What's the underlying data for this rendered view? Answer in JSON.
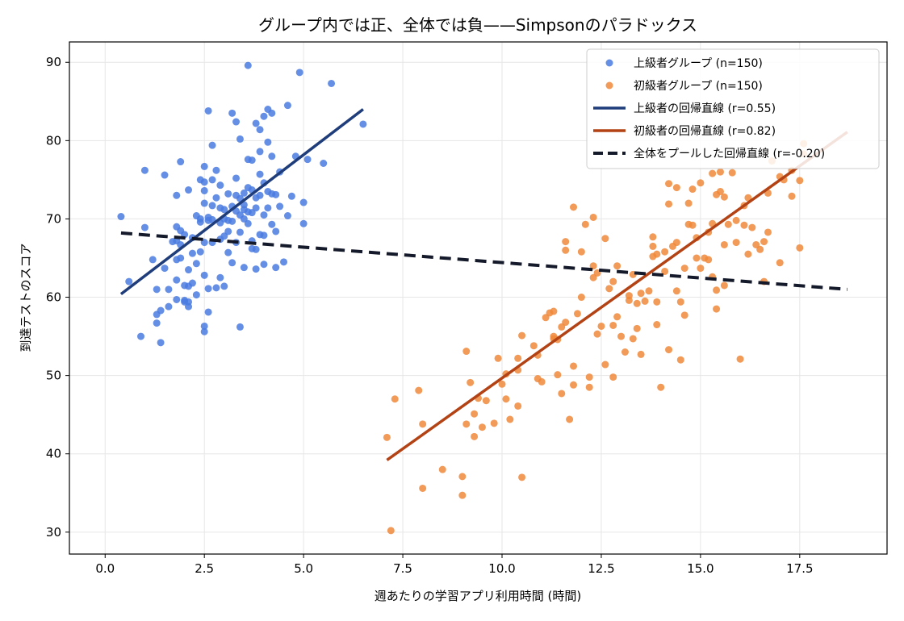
{
  "chart_data": {
    "type": "scatter",
    "title": "グループ内では正、全体では負——Simpsonのパラドックス",
    "xlabel": "週あたりの学習アプリ利用時間 (時間)",
    "ylabel": "到達テストのスコア",
    "xlim": [
      -0.9,
      19.7
    ],
    "ylim": [
      27.2,
      92.6
    ],
    "xticks": [
      0.0,
      2.5,
      5.0,
      7.5,
      10.0,
      12.5,
      15.0,
      17.5
    ],
    "xtick_labels": [
      "0.0",
      "2.5",
      "5.0",
      "7.5",
      "10.0",
      "12.5",
      "15.0",
      "17.5"
    ],
    "yticks": [
      30,
      40,
      50,
      60,
      70,
      80,
      90
    ],
    "ytick_labels": [
      "30",
      "40",
      "50",
      "60",
      "70",
      "80",
      "90"
    ],
    "grid": true,
    "legend_position": "top-right",
    "legend": [
      "上級者グループ (n=150)",
      "初級者グループ (n=150)",
      "上級者の回帰直線 (r=0.55)",
      "初級者の回帰直線 (r=0.82)",
      "全体をプールした回帰直線 (r=-0.20)"
    ],
    "colors": {
      "advanced_points": "#4a7be0",
      "beginner_points": "#f0883a",
      "advanced_line": "#1f3d7a",
      "beginner_line": "#b34214",
      "pooled_line": "#151a2b"
    },
    "series": [
      {
        "name": "上級者グループ (n=150)",
        "kind": "scatter",
        "points": [
          [
            0.4,
            70.3
          ],
          [
            0.6,
            62.0
          ],
          [
            0.9,
            55.0
          ],
          [
            1.0,
            76.2
          ],
          [
            1.0,
            68.9
          ],
          [
            1.2,
            64.8
          ],
          [
            1.3,
            57.8
          ],
          [
            1.3,
            61.0
          ],
          [
            1.3,
            56.7
          ],
          [
            1.4,
            54.2
          ],
          [
            1.4,
            58.3
          ],
          [
            1.5,
            75.6
          ],
          [
            1.5,
            63.7
          ],
          [
            1.6,
            61.0
          ],
          [
            1.6,
            58.8
          ],
          [
            1.7,
            67.1
          ],
          [
            1.8,
            62.2
          ],
          [
            1.8,
            59.7
          ],
          [
            1.8,
            73.0
          ],
          [
            1.8,
            64.8
          ],
          [
            1.8,
            69.0
          ],
          [
            1.8,
            67.2
          ],
          [
            1.9,
            77.3
          ],
          [
            1.9,
            68.5
          ],
          [
            1.9,
            66.7
          ],
          [
            1.9,
            65.0
          ],
          [
            2.0,
            68.0
          ],
          [
            2.0,
            61.5
          ],
          [
            2.0,
            59.6
          ],
          [
            2.0,
            59.4
          ],
          [
            2.1,
            73.7
          ],
          [
            2.1,
            63.5
          ],
          [
            2.1,
            61.4
          ],
          [
            2.1,
            59.4
          ],
          [
            2.1,
            58.8
          ],
          [
            2.2,
            67.6
          ],
          [
            2.2,
            65.6
          ],
          [
            2.3,
            70.4
          ],
          [
            2.3,
            64.3
          ],
          [
            2.3,
            60.3
          ],
          [
            2.4,
            75.0
          ],
          [
            2.4,
            70.0
          ],
          [
            2.4,
            69.6
          ],
          [
            2.4,
            65.8
          ],
          [
            2.5,
            74.7
          ],
          [
            2.5,
            73.6
          ],
          [
            2.5,
            72.0
          ],
          [
            2.5,
            67.0
          ],
          [
            2.5,
            62.8
          ],
          [
            2.5,
            56.3
          ],
          [
            2.5,
            55.6
          ],
          [
            2.5,
            76.7
          ],
          [
            2.6,
            83.8
          ],
          [
            2.6,
            70.2
          ],
          [
            2.6,
            61.1
          ],
          [
            2.6,
            58.1
          ],
          [
            2.7,
            79.4
          ],
          [
            2.7,
            75.0
          ],
          [
            2.7,
            71.7
          ],
          [
            2.7,
            69.9
          ],
          [
            2.7,
            67.0
          ],
          [
            2.8,
            72.7
          ],
          [
            2.8,
            61.2
          ],
          [
            2.8,
            76.2
          ],
          [
            2.9,
            74.3
          ],
          [
            2.9,
            71.4
          ],
          [
            2.9,
            69.5
          ],
          [
            2.9,
            62.5
          ],
          [
            3.0,
            67.8
          ],
          [
            3.0,
            61.4
          ],
          [
            3.0,
            71.2
          ],
          [
            3.1,
            69.8
          ],
          [
            3.1,
            68.4
          ],
          [
            3.1,
            73.2
          ],
          [
            3.1,
            65.7
          ],
          [
            3.2,
            83.5
          ],
          [
            3.2,
            71.6
          ],
          [
            3.2,
            69.7
          ],
          [
            3.2,
            64.4
          ],
          [
            3.3,
            82.4
          ],
          [
            3.3,
            73.0
          ],
          [
            3.3,
            71.0
          ],
          [
            3.3,
            67.0
          ],
          [
            3.4,
            80.2
          ],
          [
            3.4,
            72.6
          ],
          [
            3.4,
            70.5
          ],
          [
            3.4,
            68.3
          ],
          [
            3.4,
            56.2
          ],
          [
            3.5,
            73.3
          ],
          [
            3.5,
            71.8
          ],
          [
            3.5,
            70.0
          ],
          [
            3.5,
            63.8
          ],
          [
            3.6,
            77.6
          ],
          [
            3.6,
            74.0
          ],
          [
            3.6,
            70.9
          ],
          [
            3.6,
            69.4
          ],
          [
            3.6,
            89.6
          ],
          [
            3.7,
            77.5
          ],
          [
            3.7,
            73.7
          ],
          [
            3.7,
            70.8
          ],
          [
            3.7,
            67.2
          ],
          [
            3.8,
            82.2
          ],
          [
            3.8,
            72.7
          ],
          [
            3.8,
            71.4
          ],
          [
            3.8,
            66.1
          ],
          [
            3.8,
            63.6
          ],
          [
            3.9,
            81.4
          ],
          [
            3.9,
            78.6
          ],
          [
            3.9,
            75.7
          ],
          [
            3.9,
            73.0
          ],
          [
            3.9,
            68.0
          ],
          [
            4.0,
            83.1
          ],
          [
            4.0,
            74.6
          ],
          [
            4.0,
            70.5
          ],
          [
            4.0,
            67.9
          ],
          [
            4.0,
            64.2
          ],
          [
            4.1,
            84.0
          ],
          [
            4.1,
            79.8
          ],
          [
            4.1,
            73.5
          ],
          [
            4.1,
            71.4
          ],
          [
            4.2,
            83.5
          ],
          [
            4.2,
            78.0
          ],
          [
            4.2,
            73.2
          ],
          [
            4.2,
            69.3
          ],
          [
            4.3,
            73.1
          ],
          [
            4.3,
            68.4
          ],
          [
            4.3,
            63.8
          ],
          [
            4.4,
            71.6
          ],
          [
            4.5,
            64.5
          ],
          [
            4.6,
            84.5
          ],
          [
            4.6,
            70.4
          ],
          [
            4.7,
            72.9
          ],
          [
            4.8,
            78.0
          ],
          [
            4.9,
            88.7
          ],
          [
            5.0,
            72.1
          ],
          [
            5.0,
            69.4
          ],
          [
            5.1,
            77.6
          ],
          [
            5.5,
            77.1
          ],
          [
            5.7,
            87.3
          ],
          [
            6.5,
            82.1
          ],
          [
            3.0,
            70.0
          ],
          [
            2.6,
            69.8
          ],
          [
            3.5,
            71.2
          ],
          [
            3.7,
            66.2
          ],
          [
            2.2,
            61.8
          ],
          [
            4.4,
            76.0
          ],
          [
            3.3,
            75.2
          ],
          [
            2.9,
            67.4
          ]
        ]
      },
      {
        "name": "初級者グループ (n=150)",
        "kind": "scatter",
        "points": [
          [
            7.1,
            42.1
          ],
          [
            7.2,
            30.2
          ],
          [
            7.3,
            47.0
          ],
          [
            7.9,
            48.1
          ],
          [
            8.0,
            43.8
          ],
          [
            8.0,
            35.6
          ],
          [
            8.5,
            38.0
          ],
          [
            9.0,
            37.1
          ],
          [
            9.0,
            34.7
          ],
          [
            9.1,
            53.1
          ],
          [
            9.1,
            43.8
          ],
          [
            9.2,
            49.1
          ],
          [
            9.3,
            45.1
          ],
          [
            9.3,
            42.2
          ],
          [
            9.4,
            47.1
          ],
          [
            9.5,
            43.4
          ],
          [
            9.6,
            46.8
          ],
          [
            9.8,
            43.9
          ],
          [
            9.9,
            52.2
          ],
          [
            10.0,
            48.9
          ],
          [
            10.1,
            50.2
          ],
          [
            10.2,
            44.4
          ],
          [
            10.4,
            46.1
          ],
          [
            10.4,
            50.7
          ],
          [
            10.4,
            52.2
          ],
          [
            10.5,
            55.1
          ],
          [
            10.5,
            37.0
          ],
          [
            10.8,
            53.8
          ],
          [
            10.9,
            49.6
          ],
          [
            10.9,
            52.6
          ],
          [
            11.0,
            49.2
          ],
          [
            11.1,
            57.4
          ],
          [
            11.2,
            58.0
          ],
          [
            11.3,
            58.2
          ],
          [
            11.3,
            54.7
          ],
          [
            11.4,
            54.6
          ],
          [
            11.4,
            50.1
          ],
          [
            11.5,
            47.7
          ],
          [
            11.5,
            56.2
          ],
          [
            11.6,
            56.8
          ],
          [
            11.7,
            44.4
          ],
          [
            11.6,
            66.0
          ],
          [
            11.6,
            67.1
          ],
          [
            11.8,
            48.8
          ],
          [
            11.8,
            51.2
          ],
          [
            11.8,
            71.5
          ],
          [
            11.9,
            57.9
          ],
          [
            12.0,
            65.8
          ],
          [
            12.1,
            69.3
          ],
          [
            12.2,
            48.5
          ],
          [
            12.2,
            49.8
          ],
          [
            12.3,
            64.0
          ],
          [
            12.3,
            62.5
          ],
          [
            12.3,
            70.2
          ],
          [
            12.4,
            55.3
          ],
          [
            12.4,
            63.1
          ],
          [
            12.5,
            56.3
          ],
          [
            12.6,
            67.5
          ],
          [
            12.7,
            61.1
          ],
          [
            12.8,
            62.0
          ],
          [
            12.8,
            49.8
          ],
          [
            12.8,
            56.4
          ],
          [
            12.9,
            57.5
          ],
          [
            12.9,
            64.0
          ],
          [
            13.0,
            55.0
          ],
          [
            13.1,
            53.0
          ],
          [
            13.2,
            60.2
          ],
          [
            13.3,
            62.9
          ],
          [
            13.3,
            54.7
          ],
          [
            13.4,
            56.0
          ],
          [
            13.4,
            59.2
          ],
          [
            13.5,
            60.5
          ],
          [
            13.5,
            52.7
          ],
          [
            13.6,
            59.5
          ],
          [
            13.7,
            60.8
          ],
          [
            13.8,
            67.7
          ],
          [
            13.8,
            66.5
          ],
          [
            13.9,
            65.5
          ],
          [
            13.9,
            56.5
          ],
          [
            13.9,
            59.4
          ],
          [
            14.0,
            48.5
          ],
          [
            14.1,
            63.3
          ],
          [
            14.1,
            65.8
          ],
          [
            14.2,
            74.5
          ],
          [
            14.2,
            71.9
          ],
          [
            14.2,
            53.3
          ],
          [
            14.3,
            66.5
          ],
          [
            14.4,
            74.0
          ],
          [
            14.4,
            67.0
          ],
          [
            14.4,
            60.8
          ],
          [
            14.5,
            52.0
          ],
          [
            14.5,
            59.4
          ],
          [
            14.6,
            57.7
          ],
          [
            14.6,
            63.7
          ],
          [
            14.7,
            72.0
          ],
          [
            14.7,
            69.3
          ],
          [
            14.8,
            73.8
          ],
          [
            14.9,
            65.0
          ],
          [
            14.9,
            67.6
          ],
          [
            15.0,
            74.6
          ],
          [
            15.0,
            63.7
          ],
          [
            15.1,
            65.0
          ],
          [
            15.2,
            64.8
          ],
          [
            15.2,
            68.3
          ],
          [
            15.3,
            75.8
          ],
          [
            15.3,
            69.4
          ],
          [
            15.3,
            62.6
          ],
          [
            15.4,
            60.9
          ],
          [
            15.4,
            58.5
          ],
          [
            15.5,
            76.0
          ],
          [
            15.5,
            73.5
          ],
          [
            15.6,
            72.8
          ],
          [
            15.6,
            66.7
          ],
          [
            15.6,
            61.5
          ],
          [
            15.7,
            69.3
          ],
          [
            15.8,
            75.9
          ],
          [
            15.9,
            69.8
          ],
          [
            15.9,
            67.0
          ],
          [
            16.0,
            52.1
          ],
          [
            16.1,
            71.7
          ],
          [
            16.1,
            69.2
          ],
          [
            16.2,
            65.5
          ],
          [
            16.2,
            72.7
          ],
          [
            16.3,
            68.9
          ],
          [
            16.5,
            66.1
          ],
          [
            16.6,
            67.1
          ],
          [
            16.6,
            62.0
          ],
          [
            16.7,
            73.3
          ],
          [
            16.7,
            68.3
          ],
          [
            16.8,
            77.4
          ],
          [
            17.0,
            64.4
          ],
          [
            17.0,
            75.4
          ],
          [
            17.1,
            75.0
          ],
          [
            17.3,
            76.2
          ],
          [
            17.3,
            72.9
          ],
          [
            17.5,
            74.9
          ],
          [
            17.5,
            66.3
          ],
          [
            17.6,
            78.3
          ],
          [
            17.6,
            79.6
          ],
          [
            12.6,
            51.4
          ],
          [
            13.2,
            59.6
          ],
          [
            10.1,
            47.0
          ],
          [
            14.8,
            69.2
          ],
          [
            12.0,
            60.0
          ],
          [
            11.3,
            55.0
          ],
          [
            15.4,
            73.1
          ],
          [
            13.8,
            65.2
          ],
          [
            16.4,
            66.7
          ]
        ]
      },
      {
        "name": "上級者の回帰直線 (r=0.55)",
        "kind": "line",
        "x": [
          0.4,
          6.5
        ],
        "y": [
          60.4,
          84.0
        ]
      },
      {
        "name": "初級者の回帰直線 (r=0.82)",
        "kind": "line",
        "x": [
          7.1,
          18.7
        ],
        "y": [
          39.2,
          81.1
        ]
      },
      {
        "name": "全体をプールした回帰直線 (r=-0.20)",
        "kind": "line",
        "dashed": true,
        "x": [
          0.4,
          18.7
        ],
        "y": [
          68.2,
          61.0
        ]
      }
    ]
  }
}
